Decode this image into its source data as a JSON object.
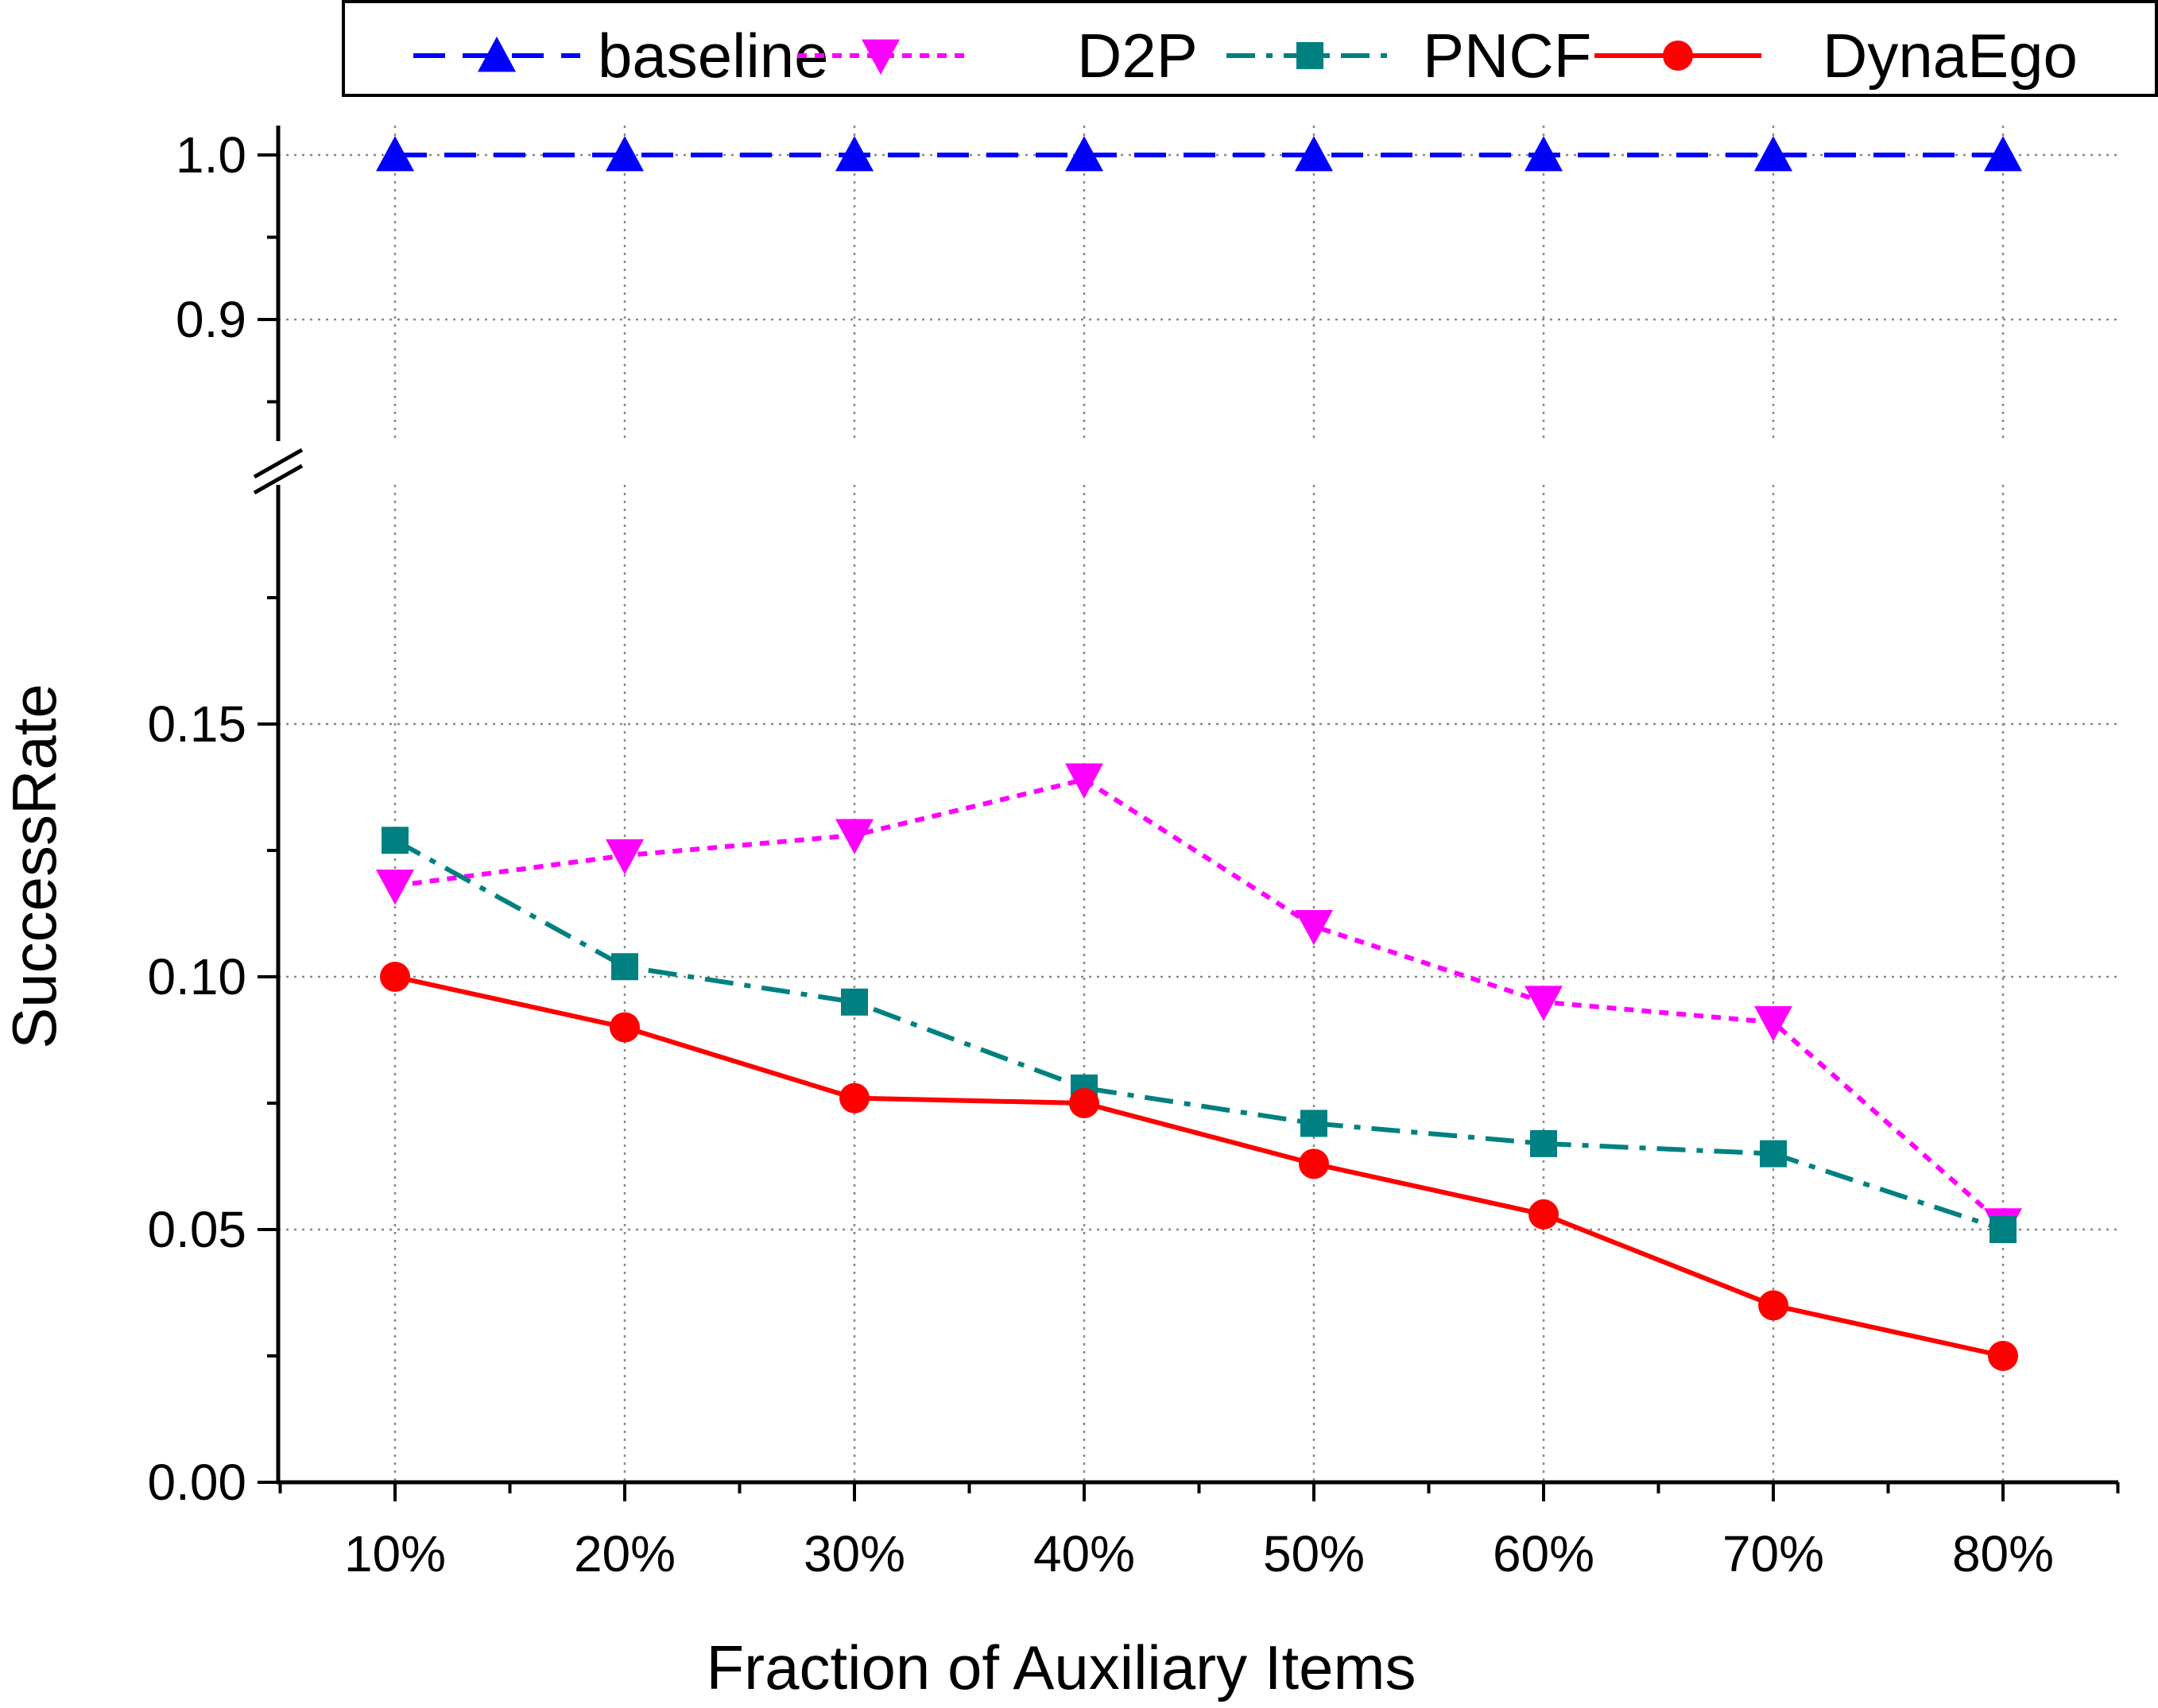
{
  "chart_data": {
    "type": "line",
    "xlabel": "Fraction of Auxiliary Items",
    "ylabel": "SuccessRate",
    "categories": [
      "10%",
      "20%",
      "30%",
      "40%",
      "50%",
      "60%",
      "70%",
      "80%"
    ],
    "y_axis_broken": true,
    "y_lower_range": [
      0.0,
      0.2
    ],
    "y_upper_range": [
      0.8,
      1.0
    ],
    "y_lower_ticks": [
      "0.00",
      "0.05",
      "0.10",
      "0.15"
    ],
    "y_upper_ticks": [
      "0.9",
      "1.0"
    ],
    "grid": true,
    "legend_position": "top",
    "series": [
      {
        "name": "baseline",
        "color": "#0000ff",
        "line_style": "dashed",
        "marker": "triangle-up",
        "values": [
          1.0,
          1.0,
          1.0,
          1.0,
          1.0,
          1.0,
          1.0,
          1.0
        ]
      },
      {
        "name": "D2P",
        "color": "#ff00ff",
        "line_style": "short-dashed",
        "marker": "triangle-down",
        "values": [
          0.118,
          0.124,
          0.128,
          0.139,
          0.11,
          0.095,
          0.091,
          0.051
        ]
      },
      {
        "name": "PNCF",
        "color": "#008080",
        "line_style": "dash-dot",
        "marker": "square",
        "values": [
          0.127,
          0.102,
          0.095,
          0.078,
          0.071,
          0.067,
          0.065,
          0.05
        ]
      },
      {
        "name": "DynaEgo",
        "color": "#ff0000",
        "line_style": "solid",
        "marker": "circle",
        "values": [
          0.1,
          0.09,
          0.076,
          0.075,
          0.063,
          0.053,
          0.035,
          0.025
        ]
      }
    ]
  }
}
